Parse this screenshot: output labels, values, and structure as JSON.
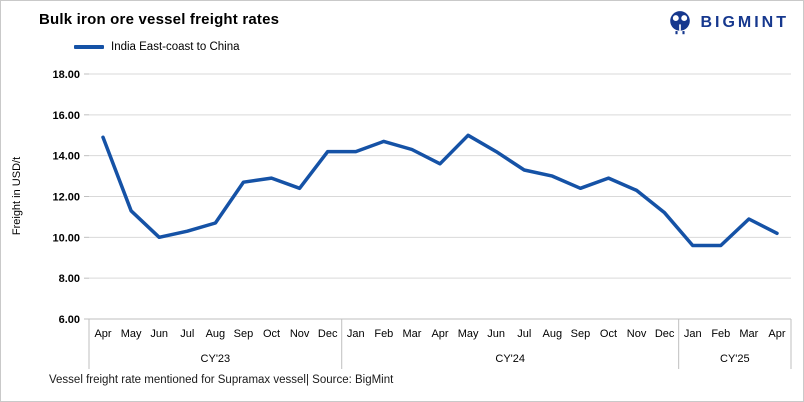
{
  "header": {
    "title": "Bulk iron ore vessel freight rates",
    "logo_text": "BIGMINT"
  },
  "legend": {
    "label": "India East-coast to China",
    "line_color": "#1552A6"
  },
  "colors": {
    "brand": "#16388E",
    "line": "#1552A6",
    "gridline": "#D9D9D9",
    "axis": "#BFBFBF"
  },
  "footer": {
    "note": "Vessel freight rate mentioned for Supramax vessel| Source: BigMint"
  },
  "chart_data": {
    "type": "line",
    "title": "Bulk iron ore vessel freight rates",
    "ylabel": "Freight in USD/t",
    "ylim": [
      6,
      18
    ],
    "ytick_step": 2,
    "ytick_labels_top_to_bottom": [
      "18.00",
      "16.00",
      "14.00",
      "12.00",
      "10.00",
      "8.00",
      "6.00"
    ],
    "grid": true,
    "legend_position": "top-left",
    "categories": [
      "Apr",
      "May",
      "Jun",
      "Jul",
      "Aug",
      "Sep",
      "Oct",
      "Nov",
      "Dec",
      "Jan",
      "Feb",
      "Mar",
      "Apr",
      "May",
      "Jun",
      "Jul",
      "Aug",
      "Sep",
      "Oct",
      "Nov",
      "Dec",
      "Jan",
      "Feb",
      "Mar",
      "Apr"
    ],
    "category_groups": [
      {
        "label": "CY'23",
        "span": 9
      },
      {
        "label": "CY'24",
        "span": 12
      },
      {
        "label": "CY'25",
        "span": 4
      }
    ],
    "series": [
      {
        "name": "India East-coast to China",
        "color": "#1552A6",
        "values": [
          14.9,
          11.3,
          10.0,
          10.3,
          10.7,
          12.7,
          12.9,
          12.4,
          14.2,
          14.2,
          14.7,
          14.3,
          13.6,
          15.0,
          14.2,
          13.3,
          13.0,
          12.4,
          12.9,
          12.3,
          11.2,
          9.6,
          9.6,
          10.9,
          10.2
        ]
      }
    ]
  }
}
